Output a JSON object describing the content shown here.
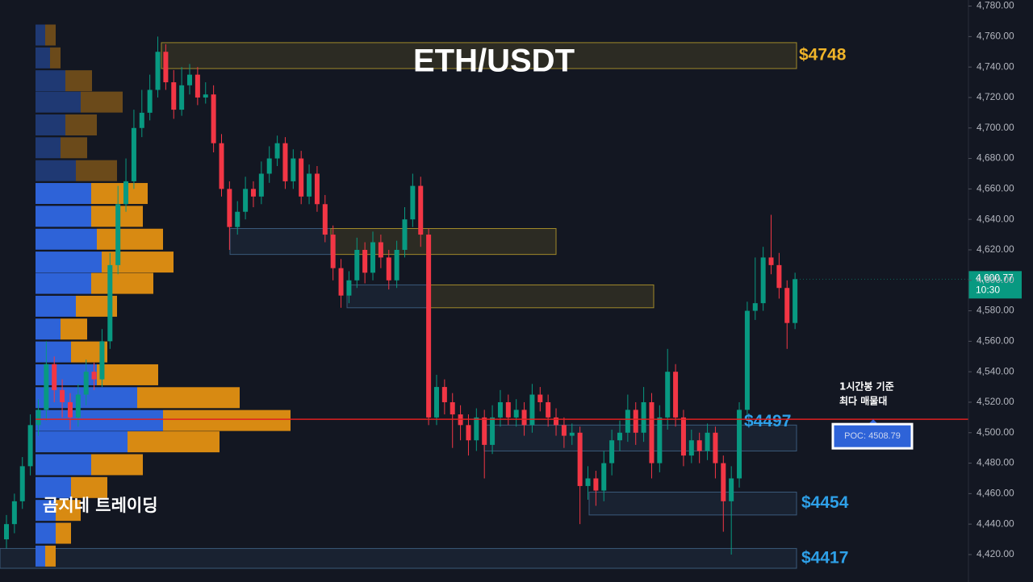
{
  "chart_data": {
    "type": "candlestick",
    "title": "ETH/USDT",
    "watermark": "곰지네 트레이딩",
    "up_color": "#089981",
    "down_color": "#f23645",
    "open": [
      4430,
      4440,
      4455,
      4478,
      4505,
      4515,
      4545,
      4528,
      4520,
      4510,
      4525,
      4540,
      4535,
      4560,
      4610,
      4650,
      4665,
      4700,
      4710,
      4725,
      4750,
      4730,
      4712,
      4728,
      4735,
      4720,
      4722,
      4690,
      4660,
      4635,
      4645,
      4660,
      4655,
      4670,
      4680,
      4690,
      4665,
      4680,
      4655,
      4670,
      4650,
      4630,
      4608,
      4590,
      4600,
      4620,
      4605,
      4625,
      4615,
      4600,
      4620,
      4640,
      4662,
      4630,
      4510,
      4530,
      4520,
      4512,
      4505,
      4495,
      4510,
      4492,
      4510,
      4520,
      4510,
      4515,
      4505,
      4525,
      4520,
      4510,
      4505,
      4498,
      4500,
      4465,
      4470,
      4462,
      4480,
      4495,
      4500,
      4515,
      4500,
      4520,
      4480,
      4510,
      4540,
      4510,
      4485,
      4495,
      4488,
      4500,
      4480,
      4455,
      4470,
      4515,
      4580,
      4585,
      4615,
      4610,
      4595,
      4572
    ],
    "high": [
      4446,
      4460,
      4484,
      4512,
      4522,
      4560,
      4550,
      4535,
      4526,
      4532,
      4548,
      4546,
      4568,
      4618,
      4662,
      4680,
      4712,
      4725,
      4735,
      4760,
      4755,
      4738,
      4740,
      4742,
      4740,
      4730,
      4728,
      4696,
      4665,
      4652,
      4668,
      4665,
      4678,
      4688,
      4695,
      4694,
      4686,
      4685,
      4676,
      4675,
      4656,
      4636,
      4614,
      4606,
      4628,
      4625,
      4632,
      4630,
      4620,
      4626,
      4648,
      4670,
      4668,
      4634,
      4538,
      4535,
      4526,
      4518,
      4512,
      4516,
      4515,
      4518,
      4528,
      4525,
      4522,
      4520,
      4532,
      4530,
      4525,
      4516,
      4510,
      4506,
      4504,
      4478,
      4475,
      4488,
      4502,
      4508,
      4525,
      4520,
      4530,
      4526,
      4518,
      4555,
      4545,
      4515,
      4502,
      4500,
      4506,
      4504,
      4485,
      4478,
      4520,
      4586,
      4615,
      4622,
      4643,
      4618,
      4600,
      4605
    ],
    "low": [
      4424,
      4434,
      4450,
      4472,
      4498,
      4508,
      4520,
      4510,
      4502,
      4504,
      4518,
      4528,
      4530,
      4555,
      4604,
      4645,
      4660,
      4694,
      4705,
      4720,
      4725,
      4706,
      4708,
      4722,
      4715,
      4716,
      4684,
      4655,
      4620,
      4630,
      4640,
      4648,
      4650,
      4664,
      4675,
      4660,
      4660,
      4650,
      4650,
      4645,
      4625,
      4600,
      4582,
      4585,
      4595,
      4598,
      4600,
      4608,
      4594,
      4595,
      4615,
      4635,
      4622,
      4505,
      4505,
      4512,
      4490,
      4495,
      4485,
      4488,
      4470,
      4486,
      4504,
      4505,
      4504,
      4498,
      4500,
      4514,
      4504,
      4498,
      4490,
      4492,
      4440,
      4456,
      4452,
      4455,
      4472,
      4488,
      4494,
      4492,
      4494,
      4470,
      4474,
      4502,
      4504,
      4478,
      4480,
      4480,
      4482,
      4470,
      4435,
      4420,
      4464,
      4510,
      4574,
      4580,
      4604,
      4588,
      4555,
      4568
    ],
    "close": [
      4440,
      4455,
      4478,
      4505,
      4515,
      4545,
      4528,
      4520,
      4510,
      4525,
      4540,
      4535,
      4560,
      4610,
      4650,
      4665,
      4700,
      4710,
      4725,
      4750,
      4730,
      4712,
      4728,
      4735,
      4720,
      4722,
      4690,
      4660,
      4635,
      4645,
      4660,
      4655,
      4670,
      4680,
      4690,
      4665,
      4680,
      4655,
      4670,
      4650,
      4630,
      4608,
      4590,
      4600,
      4620,
      4605,
      4625,
      4615,
      4600,
      4620,
      4640,
      4662,
      4630,
      4510,
      4530,
      4520,
      4512,
      4505,
      4495,
      4510,
      4492,
      4510,
      4520,
      4510,
      4515,
      4505,
      4525,
      4520,
      4510,
      4505,
      4498,
      4500,
      4465,
      4470,
      4462,
      4480,
      4495,
      4500,
      4515,
      4500,
      4520,
      4480,
      4510,
      4540,
      4510,
      4485,
      4495,
      4488,
      4500,
      4480,
      4455,
      4470,
      4515,
      4580,
      4585,
      4615,
      4610,
      4595,
      4572,
      4600.77
    ],
    "ylim": [
      4402,
      4784
    ],
    "yticks": [
      {
        "value": 4420,
        "label": "4,420.00"
      },
      {
        "value": 4440,
        "label": "4,440.00"
      },
      {
        "value": 4460,
        "label": "4,460.00"
      },
      {
        "value": 4480,
        "label": "4,480.00"
      },
      {
        "value": 4500,
        "label": "4,500.00"
      },
      {
        "value": 4520,
        "label": "4,520.00"
      },
      {
        "value": 4540,
        "label": "4,540.00"
      },
      {
        "value": 4560,
        "label": "4,560.00"
      },
      {
        "value": 4580,
        "label": "4,580.00"
      },
      {
        "value": 4600,
        "label": "4,600.00"
      },
      {
        "value": 4620,
        "label": "4,620.00"
      },
      {
        "value": 4640,
        "label": "4,640.00"
      },
      {
        "value": 4660,
        "label": "4,660.00"
      },
      {
        "value": 4680,
        "label": "4,680.00"
      },
      {
        "value": 4700,
        "label": "4,700.00"
      },
      {
        "value": 4720,
        "label": "4,720.00"
      },
      {
        "value": 4740,
        "label": "4,740.00"
      },
      {
        "value": 4760,
        "label": "4,760.00"
      },
      {
        "value": 4780,
        "label": "4,780.00"
      }
    ],
    "last_price": {
      "value": 4600.77,
      "label": "4,600.77",
      "time": "10:30"
    },
    "volume_profile": {
      "buy_color": "#2e63d8",
      "sell_color": "#d88a12",
      "levels": [
        4761,
        4746,
        4731,
        4717,
        4702,
        4687,
        4672,
        4657,
        4642,
        4627,
        4612,
        4598,
        4583,
        4568,
        4553,
        4538,
        4523,
        4508,
        4494,
        4479,
        4464,
        4449,
        4434,
        4419
      ],
      "buy": [
        12,
        18,
        37,
        56,
        37,
        31,
        50,
        69,
        69,
        76,
        82,
        69,
        50,
        31,
        44,
        76,
        126,
        158,
        114,
        69,
        44,
        25,
        25,
        12
      ],
      "sell": [
        13,
        13,
        33,
        52,
        39,
        33,
        51,
        70,
        64,
        82,
        89,
        77,
        51,
        33,
        45,
        76,
        127,
        158,
        114,
        64,
        45,
        31,
        19,
        13
      ]
    },
    "zones": [
      {
        "top": 4756,
        "bottom": 4739,
        "color": "#a08a2a",
        "label": "$4748",
        "label_color": "#f0b429"
      },
      {
        "top": 4634,
        "bottom": 4617,
        "color": "#3a5a7a"
      },
      {
        "top": 4634,
        "bottom": 4617,
        "color": "#a08a2a"
      },
      {
        "top": 4597,
        "bottom": 4582,
        "color": "#3a5a7a"
      },
      {
        "top": 4597,
        "bottom": 4582,
        "color": "#a08a2a"
      },
      {
        "top": 4505,
        "bottom": 4488,
        "color": "#3a5a7a",
        "label": "$4497",
        "label_color": "#2ea0e8"
      },
      {
        "top": 4461,
        "bottom": 4446,
        "color": "#3a5a7a",
        "label": "$4454",
        "label_color": "#2ea0e8"
      },
      {
        "top": 4424,
        "bottom": 4411,
        "color": "#3a5a7a",
        "label": "$4417",
        "label_color": "#2ea0e8"
      }
    ],
    "poc": {
      "value": 4508.79,
      "label": "POC: 4508.79",
      "color": "#e02020"
    },
    "annotation": [
      "1시간봉 기준",
      "최다 매물대"
    ]
  }
}
